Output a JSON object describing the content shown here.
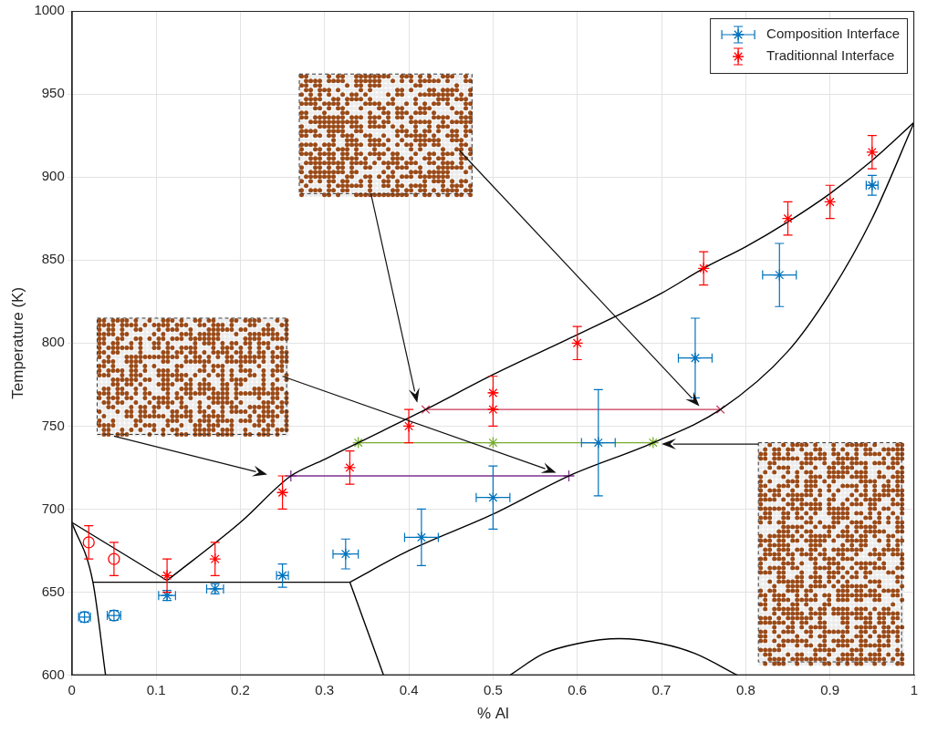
{
  "chart_data": {
    "type": "scatter",
    "x_label": "% Al",
    "y_label": "Temperature (K)",
    "xlim": [
      0,
      1
    ],
    "xticks": [
      0,
      0.1,
      0.2,
      0.3,
      0.4,
      0.5,
      0.6,
      0.7,
      0.8,
      0.9,
      1
    ],
    "ylim": [
      600,
      1000
    ],
    "yticks": [
      600,
      650,
      700,
      750,
      800,
      850,
      900,
      950,
      1000
    ],
    "grid": true,
    "legend": "upper right",
    "series": [
      {
        "name": "Composition Interface",
        "type": "scatter",
        "color": "#0072BD",
        "marker": "asterisk",
        "x": [
          0.113,
          0.17,
          0.25,
          0.325,
          0.415,
          0.5,
          0.625,
          0.74,
          0.84,
          0.95
        ],
        "values": [
          648,
          652,
          660,
          673,
          683,
          707,
          740,
          791,
          841,
          895
        ],
        "xerr": [
          0.01,
          0.01,
          0.007,
          0.015,
          0.02,
          0.02,
          0.02,
          0.02,
          0.02,
          0.007
        ],
        "yerr": [
          3,
          3,
          7,
          9,
          17,
          19,
          32,
          24,
          19,
          6
        ]
      },
      {
        "type": "scatter",
        "color": "#0072BD",
        "marker": "circle",
        "x": [
          0.015,
          0.05
        ],
        "values": [
          635,
          636
        ],
        "xerr": [
          0.007,
          0.008
        ],
        "yerr": [
          3,
          3
        ]
      },
      {
        "name": "Traditionnal Interface",
        "type": "scatter",
        "color": "#FF0000",
        "marker": "asterisk",
        "x": [
          0.113,
          0.17,
          0.25,
          0.33,
          0.4,
          0.5,
          0.5,
          0.6,
          0.75,
          0.85,
          0.9,
          0.95
        ],
        "values": [
          660,
          670,
          710,
          725,
          750,
          760,
          770,
          800,
          845,
          875,
          885,
          915
        ],
        "yerr": [
          10,
          10,
          10,
          10,
          10,
          10,
          10,
          10,
          10,
          10,
          10,
          10
        ]
      },
      {
        "type": "scatter",
        "color": "#FF0000",
        "marker": "circle",
        "x": [
          0.02,
          0.05
        ],
        "values": [
          680,
          670
        ],
        "yerr": [
          10,
          10
        ]
      },
      {
        "type": "line",
        "color": "#000000",
        "marker": "none",
        "line_style": "solid",
        "x": [
          0,
          0.113
        ],
        "values": [
          692,
          657
        ]
      },
      {
        "type": "line",
        "color": "#000000",
        "marker": "none",
        "line_style": "solid",
        "x": [
          0.113,
          0.2,
          0.26,
          0.3,
          0.34,
          0.42,
          0.5,
          0.6,
          0.7,
          0.75,
          0.8,
          0.85,
          0.9,
          0.95,
          1
        ],
        "values": [
          657,
          692,
          720,
          730,
          740,
          760,
          781,
          805,
          830,
          845,
          858,
          873,
          890,
          910,
          933
        ]
      },
      {
        "type": "line",
        "color": "#000000",
        "marker": "none",
        "line_style": "solid",
        "x": [
          0.33,
          0.4,
          0.5,
          0.59,
          0.69,
          0.77,
          0.85,
          0.9,
          0.95,
          1
        ],
        "values": [
          656,
          675,
          697,
          720,
          740,
          760,
          795,
          830,
          875,
          933
        ]
      },
      {
        "type": "line",
        "color": "#000000",
        "marker": "none",
        "line_style": "solid",
        "x": [
          0.025,
          0.33
        ],
        "values": [
          656,
          656
        ]
      },
      {
        "type": "line",
        "color": "#000000",
        "marker": "none",
        "line_style": "solid",
        "x": [
          0,
          0.025,
          0.04
        ],
        "values": [
          692,
          656,
          600
        ]
      },
      {
        "type": "line",
        "color": "#000000",
        "marker": "none",
        "line_style": "solid",
        "x": [
          0.33,
          0.35,
          0.37
        ],
        "values": [
          656,
          628,
          600
        ]
      },
      {
        "type": "line",
        "color": "#000000",
        "marker": "none",
        "line_style": "solid",
        "x": [
          0.52,
          0.56,
          0.6,
          0.65,
          0.7,
          0.74,
          0.79
        ],
        "values": [
          600,
          613,
          619,
          622,
          619,
          613,
          600
        ]
      },
      {
        "type": "line",
        "color": "#C8385A",
        "marker": "x",
        "line_style": "solid",
        "x": [
          0.42,
          0.77
        ],
        "values": [
          760,
          760
        ]
      },
      {
        "type": "line",
        "color": "#77AC30",
        "marker": "asterisk",
        "line_style": "solid",
        "x": [
          0.34,
          0.5,
          0.69
        ],
        "values": [
          740,
          740,
          740
        ]
      },
      {
        "type": "line",
        "color": "#7E2F8E",
        "marker": "plus",
        "line_style": "solid",
        "x": [
          0.26,
          0.59
        ],
        "values": [
          720,
          720
        ]
      }
    ]
  }
}
